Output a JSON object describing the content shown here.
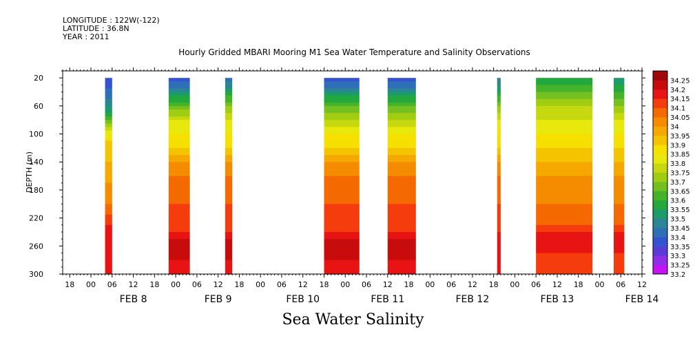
{
  "meta": {
    "longitude": "LONGITUDE : 122W(-122)",
    "latitude": "LATITUDE : 36.8N",
    "year": "YEAR : 2011"
  },
  "title": "Hourly Gridded MBARI Mooring M1 Sea Water Temperature and Salinity Observations",
  "caption": "Sea Water Salinity",
  "chart_data": {
    "type": "heatmap",
    "title": "Hourly Gridded MBARI Mooring M1 Sea Water Temperature and Salinity Observations",
    "xlabel": "",
    "ylabel": "DEPTH (m)",
    "variable": "Sea Water Salinity",
    "x_ticks": {
      "hours": [
        "00",
        "06",
        "12",
        "18"
      ],
      "days": [
        "FEB 8",
        "FEB 9",
        "FEB 10",
        "FEB 11",
        "FEB 12",
        "FEB 13",
        "FEB 14"
      ],
      "range_hours_from_feb8_00": [
        -8,
        156
      ]
    },
    "y_ticks": [
      20,
      60,
      100,
      140,
      180,
      220,
      260,
      300
    ],
    "ylim": [
      300,
      10
    ],
    "colorbar": {
      "levels": [
        33.2,
        33.25,
        33.3,
        33.35,
        33.4,
        33.45,
        33.5,
        33.55,
        33.6,
        33.65,
        33.7,
        33.75,
        33.8,
        33.85,
        33.9,
        33.95,
        34,
        34.05,
        34.1,
        34.15,
        34.2,
        34.25
      ],
      "labels": [
        "33.2",
        "33.25",
        "33.3",
        "33.35",
        "33.4",
        "33.45",
        "33.5",
        "33.55",
        "33.6",
        "33.65",
        "33.7",
        "33.75",
        "33.8",
        "33.85",
        "33.9",
        "33.95",
        "34",
        "34.05",
        "34.1",
        "34.15",
        "34.2",
        "34.25"
      ],
      "colors": [
        "#c414f5",
        "#8f2ee6",
        "#5b3bd6",
        "#3553d0",
        "#2e6fb8",
        "#2a8596",
        "#1e9b6a",
        "#22a83c",
        "#45b32a",
        "#73c020",
        "#a0cc12",
        "#c6d810",
        "#e8e80c",
        "#f5e000",
        "#f5c400",
        "#f5a800",
        "#f58c00",
        "#f56a00",
        "#f53c0c",
        "#e81414",
        "#c80c0c",
        "#a00808"
      ]
    },
    "data_segments": [
      {
        "start_hour": 4,
        "end_hour": 6,
        "profile": [
          [
            20,
            33.35
          ],
          [
            50,
            33.45
          ],
          [
            70,
            33.55
          ],
          [
            90,
            33.75
          ],
          [
            110,
            33.9
          ],
          [
            140,
            33.95
          ],
          [
            170,
            34.0
          ],
          [
            200,
            34.05
          ],
          [
            230,
            34.15
          ],
          [
            260,
            34.15
          ],
          [
            290,
            34.15
          ]
        ]
      },
      {
        "start_hour": 22,
        "end_hour": 28,
        "profile": [
          [
            20,
            33.35
          ],
          [
            40,
            33.5
          ],
          [
            60,
            33.65
          ],
          [
            80,
            33.8
          ],
          [
            100,
            33.85
          ],
          [
            120,
            33.9
          ],
          [
            140,
            34.0
          ],
          [
            160,
            34.05
          ],
          [
            200,
            34.1
          ],
          [
            240,
            34.15
          ],
          [
            260,
            34.25
          ],
          [
            280,
            34.2
          ],
          [
            300,
            34.15
          ]
        ]
      },
      {
        "start_hour": 38,
        "end_hour": 40,
        "profile": [
          [
            20,
            33.4
          ],
          [
            40,
            33.55
          ],
          [
            60,
            33.7
          ],
          [
            80,
            33.8
          ],
          [
            100,
            33.85
          ],
          [
            120,
            33.9
          ],
          [
            140,
            34.0
          ],
          [
            160,
            34.05
          ],
          [
            200,
            34.1
          ],
          [
            240,
            34.15
          ],
          [
            260,
            34.25
          ],
          [
            280,
            34.2
          ],
          [
            300,
            34.15
          ]
        ]
      },
      {
        "start_hour": 66,
        "end_hour": 76,
        "profile": [
          [
            20,
            33.35
          ],
          [
            40,
            33.5
          ],
          [
            60,
            33.65
          ],
          [
            80,
            33.75
          ],
          [
            100,
            33.85
          ],
          [
            120,
            33.9
          ],
          [
            140,
            34.0
          ],
          [
            160,
            34.05
          ],
          [
            200,
            34.1
          ],
          [
            240,
            34.15
          ],
          [
            260,
            34.25
          ],
          [
            280,
            34.2
          ],
          [
            300,
            34.15
          ]
        ]
      },
      {
        "start_hour": 84,
        "end_hour": 92,
        "profile": [
          [
            20,
            33.35
          ],
          [
            40,
            33.5
          ],
          [
            60,
            33.65
          ],
          [
            80,
            33.75
          ],
          [
            100,
            33.85
          ],
          [
            120,
            33.9
          ],
          [
            140,
            34.0
          ],
          [
            160,
            34.05
          ],
          [
            200,
            34.1
          ],
          [
            240,
            34.15
          ],
          [
            260,
            34.25
          ],
          [
            280,
            34.2
          ],
          [
            300,
            34.15
          ]
        ]
      },
      {
        "start_hour": 115,
        "end_hour": 116,
        "profile": [
          [
            20,
            33.45
          ],
          [
            40,
            33.55
          ],
          [
            60,
            33.7
          ],
          [
            80,
            33.8
          ],
          [
            100,
            33.85
          ],
          [
            120,
            33.9
          ],
          [
            140,
            34.0
          ],
          [
            160,
            34.05
          ],
          [
            200,
            34.1
          ],
          [
            240,
            34.15
          ],
          [
            260,
            34.2
          ],
          [
            300,
            34.15
          ]
        ]
      },
      {
        "start_hour": 126,
        "end_hour": 142,
        "profile": [
          [
            20,
            33.55
          ],
          [
            40,
            33.65
          ],
          [
            60,
            33.75
          ],
          [
            80,
            33.8
          ],
          [
            100,
            33.85
          ],
          [
            120,
            33.9
          ],
          [
            140,
            33.95
          ],
          [
            160,
            34.0
          ],
          [
            200,
            34.05
          ],
          [
            230,
            34.1
          ],
          [
            250,
            34.2
          ],
          [
            270,
            34.15
          ],
          [
            300,
            34.1
          ]
        ]
      },
      {
        "start_hour": 148,
        "end_hour": 151,
        "profile": [
          [
            20,
            33.5
          ],
          [
            40,
            33.6
          ],
          [
            60,
            33.7
          ],
          [
            80,
            33.8
          ],
          [
            100,
            33.85
          ],
          [
            120,
            33.9
          ],
          [
            140,
            33.95
          ],
          [
            160,
            34.0
          ],
          [
            200,
            34.05
          ],
          [
            230,
            34.1
          ],
          [
            250,
            34.2
          ],
          [
            270,
            34.15
          ],
          [
            300,
            34.1
          ]
        ]
      }
    ]
  }
}
